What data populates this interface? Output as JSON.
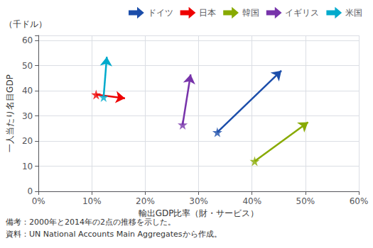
{
  "chart_data": {
    "type": "arrow",
    "xlabel": "輸出GDP比率（財・サービス）",
    "ylabel": "一人当たり名目GDP",
    "annotations": [
      "（千ドル）"
    ],
    "notes": [
      "備考：2000年と2014年の2点の推移を示した。",
      "資料：UN National Accounts Main Aggregatesから作成。"
    ],
    "xlim": [
      0.0,
      0.6
    ],
    "ylim": [
      0,
      62
    ],
    "xticks": [
      {
        "value": 0.0,
        "label": "0%"
      },
      {
        "value": 0.1,
        "label": "10%"
      },
      {
        "value": 0.2,
        "label": "20%"
      },
      {
        "value": 0.3,
        "label": "30%"
      },
      {
        "value": 0.4,
        "label": "40%"
      },
      {
        "value": 0.5,
        "label": "50%"
      },
      {
        "value": 0.6,
        "label": "60%"
      }
    ],
    "yticks": [
      0,
      10,
      20,
      30,
      40,
      50,
      60
    ],
    "grid": true,
    "legend": "upper right",
    "series": [
      {
        "name": "ドイツ",
        "color": "#1C4EAA",
        "marker": "star",
        "x": [
          0.335,
          0.455
        ],
        "values": [
          23.5,
          48.0
        ]
      },
      {
        "name": "日本",
        "color": "#EE0000",
        "marker": "star",
        "x": [
          0.108,
          0.162
        ],
        "values": [
          38.5,
          37.0
        ]
      },
      {
        "name": "韓国",
        "color": "#88AA00",
        "marker": "star",
        "x": [
          0.405,
          0.505
        ],
        "values": [
          12.0,
          27.5
        ]
      },
      {
        "name": "イギリス",
        "color": "#7733AA",
        "marker": "star",
        "x": [
          0.27,
          0.285
        ],
        "values": [
          26.5,
          46.5
        ]
      },
      {
        "name": "米国",
        "color": "#00AACC",
        "marker": "star",
        "x": [
          0.122,
          0.128
        ],
        "values": [
          37.5,
          53.5
        ]
      }
    ]
  }
}
